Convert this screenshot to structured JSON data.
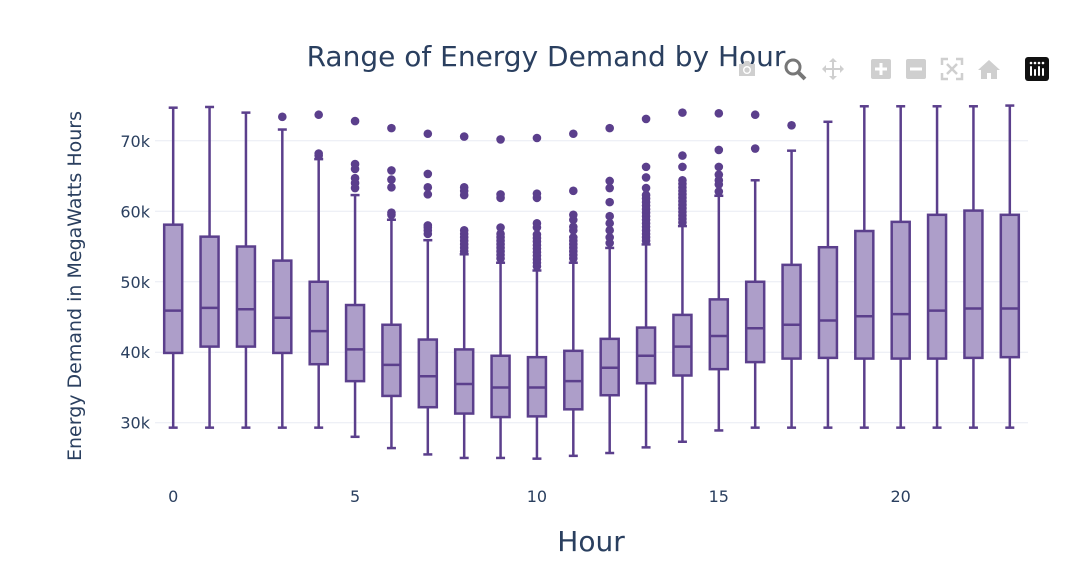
{
  "colors": {
    "box_line": "#5b3f8c",
    "box_fill": "#ad9ec9",
    "grid": "#e8ebf3",
    "text": "#2a3f5f",
    "modebar_icon": "#cfcfcf"
  },
  "modebar": {
    "icons": [
      "camera-icon",
      "zoom-icon",
      "pan-icon",
      "zoom-in-icon",
      "zoom-out-icon",
      "autoscale-icon",
      "reset-axes-icon",
      "plotly-logo-icon"
    ]
  },
  "chart_data": {
    "type": "box",
    "title": "Range of Energy Demand by Hour",
    "xlabel": "Hour",
    "ylabel": "Energy Demand in MegaWatts Hours",
    "xlim": [
      -0.5,
      23.5
    ],
    "ylim": [
      24000,
      76500
    ],
    "xticks": [
      0,
      5,
      10,
      15,
      20
    ],
    "xtick_labels": [
      "0",
      "5",
      "10",
      "15",
      "20"
    ],
    "yticks": [
      30000,
      40000,
      50000,
      60000,
      70000
    ],
    "ytick_labels": [
      "30k",
      "40k",
      "50k",
      "60k",
      "70k"
    ],
    "grid": true,
    "boxes": [
      {
        "hour": 0,
        "min": 29300,
        "q1": 39900,
        "median": 45900,
        "q3": 58100,
        "max": 74700,
        "outliers": []
      },
      {
        "hour": 1,
        "min": 29300,
        "q1": 40800,
        "median": 46300,
        "q3": 56400,
        "max": 74800,
        "outliers": []
      },
      {
        "hour": 2,
        "min": 29300,
        "q1": 40800,
        "median": 46100,
        "q3": 55000,
        "max": 74000,
        "outliers": []
      },
      {
        "hour": 3,
        "min": 29300,
        "q1": 39900,
        "median": 44900,
        "q3": 53000,
        "max": 71600,
        "outliers": [
          73400
        ]
      },
      {
        "hour": 4,
        "min": 29300,
        "q1": 38300,
        "median": 43000,
        "q3": 50000,
        "max": 67400,
        "outliers": [
          67900,
          68200,
          73700
        ]
      },
      {
        "hour": 5,
        "min": 28000,
        "q1": 35900,
        "median": 40400,
        "q3": 46700,
        "max": 62300,
        "outliers": [
          63300,
          64000,
          64700,
          66000,
          66700,
          72800
        ]
      },
      {
        "hour": 6,
        "min": 26400,
        "q1": 33800,
        "median": 38200,
        "q3": 43900,
        "max": 58800,
        "outliers": [
          59500,
          59800,
          63400,
          64500,
          65800,
          71800
        ]
      },
      {
        "hour": 7,
        "min": 25500,
        "q1": 32200,
        "median": 36600,
        "q3": 41800,
        "max": 55900,
        "outliers": [
          56800,
          57300,
          57700,
          58000,
          62400,
          63400,
          65300,
          71000
        ]
      },
      {
        "hour": 8,
        "min": 25000,
        "q1": 31300,
        "median": 35500,
        "q3": 40400,
        "max": 53900,
        "outliers": [
          54300,
          54800,
          55300,
          55800,
          56300,
          56800,
          57300,
          62300,
          62900,
          63400,
          70600
        ]
      },
      {
        "hour": 9,
        "min": 25000,
        "q1": 30800,
        "median": 35000,
        "q3": 39500,
        "max": 52700,
        "outliers": [
          53300,
          53800,
          54300,
          54800,
          55300,
          55800,
          56300,
          56800,
          57700,
          61900,
          62400,
          70200
        ]
      },
      {
        "hour": 10,
        "min": 24900,
        "q1": 30900,
        "median": 35000,
        "q3": 39300,
        "max": 51600,
        "outliers": [
          52200,
          52700,
          53200,
          53700,
          54200,
          54700,
          55200,
          55700,
          56200,
          56700,
          57700,
          58300,
          61900,
          62500,
          70400
        ]
      },
      {
        "hour": 11,
        "min": 25300,
        "q1": 31900,
        "median": 35900,
        "q3": 40200,
        "max": 52700,
        "outliers": [
          53300,
          53800,
          54300,
          54800,
          55300,
          55800,
          56300,
          57300,
          57800,
          58800,
          59500,
          62900,
          71000
        ]
      },
      {
        "hour": 12,
        "min": 25700,
        "q1": 33900,
        "median": 37800,
        "q3": 41900,
        "max": 54800,
        "outliers": [
          55500,
          56300,
          57300,
          58300,
          59300,
          61300,
          63300,
          64300,
          71800
        ]
      },
      {
        "hour": 13,
        "min": 26500,
        "q1": 35600,
        "median": 39500,
        "q3": 43500,
        "max": 55300,
        "outliers": [
          55800,
          56300,
          56800,
          57300,
          57800,
          58300,
          58800,
          59300,
          59800,
          60300,
          60800,
          61300,
          61800,
          62300,
          63300,
          64800,
          66300,
          73100
        ]
      },
      {
        "hour": 14,
        "min": 27300,
        "q1": 36700,
        "median": 40800,
        "q3": 45300,
        "max": 57900,
        "outliers": [
          58400,
          58900,
          59400,
          59900,
          60400,
          60900,
          61400,
          61900,
          62400,
          62900,
          63400,
          63900,
          64400,
          66300,
          67900,
          74000
        ]
      },
      {
        "hour": 15,
        "min": 28900,
        "q1": 37600,
        "median": 42300,
        "q3": 47500,
        "max": 62200,
        "outliers": [
          62800,
          63800,
          64400,
          65200,
          66300,
          68700,
          73900
        ]
      },
      {
        "hour": 16,
        "min": 29300,
        "q1": 38600,
        "median": 43400,
        "q3": 50000,
        "max": 64400,
        "outliers": [
          68900,
          73700
        ]
      },
      {
        "hour": 17,
        "min": 29300,
        "q1": 39100,
        "median": 43900,
        "q3": 52400,
        "max": 68600,
        "outliers": [
          72200
        ]
      },
      {
        "hour": 18,
        "min": 29300,
        "q1": 39200,
        "median": 44500,
        "q3": 54900,
        "max": 72700,
        "outliers": []
      },
      {
        "hour": 19,
        "min": 29300,
        "q1": 39100,
        "median": 45100,
        "q3": 57200,
        "max": 74900,
        "outliers": []
      },
      {
        "hour": 20,
        "min": 29300,
        "q1": 39100,
        "median": 45400,
        "q3": 58500,
        "max": 74900,
        "outliers": []
      },
      {
        "hour": 21,
        "min": 29300,
        "q1": 39100,
        "median": 45900,
        "q3": 59500,
        "max": 74900,
        "outliers": []
      },
      {
        "hour": 22,
        "min": 29300,
        "q1": 39200,
        "median": 46200,
        "q3": 60100,
        "max": 74900,
        "outliers": []
      },
      {
        "hour": 23,
        "min": 29300,
        "q1": 39300,
        "median": 46200,
        "q3": 59500,
        "max": 75000,
        "outliers": []
      }
    ]
  }
}
